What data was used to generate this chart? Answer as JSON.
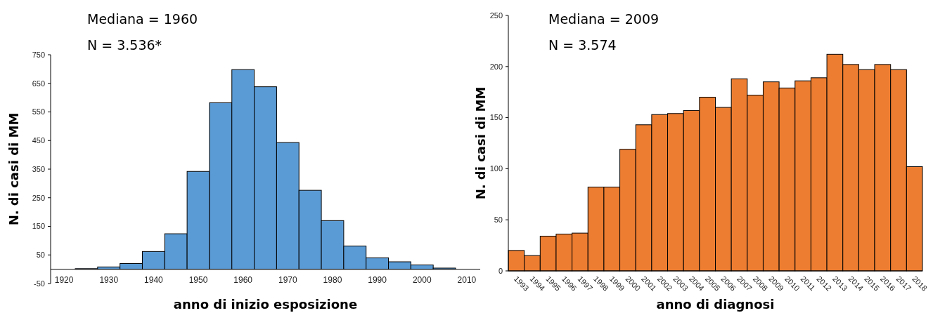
{
  "chart_data": [
    {
      "type": "histogram",
      "xlabel": "anno di inizio esposizione",
      "ylabel": "N. di casi di MM",
      "annotations": [
        "Mediana = 1960",
        "N = 3.536*"
      ],
      "bins": [
        1922.5,
        1927.5,
        1932.5,
        1937.5,
        1942.5,
        1947.5,
        1952.5,
        1957.5,
        1962.5,
        1967.5,
        1972.5,
        1977.5,
        1982.5,
        1987.5,
        1992.5,
        1997.5,
        2002.5,
        2007.5
      ],
      "values": [
        2,
        8,
        20,
        62,
        124,
        342,
        582,
        698,
        638,
        443,
        276,
        170,
        81,
        40,
        26,
        15,
        4
      ],
      "color": "#5b9bd5",
      "xlim": [
        1917,
        2013
      ],
      "xticks": [
        1920,
        1930,
        1940,
        1950,
        1960,
        1970,
        1980,
        1990,
        2000,
        2010
      ],
      "ylim": [
        -50,
        750
      ],
      "yticks": [
        -50,
        50,
        150,
        250,
        350,
        450,
        550,
        650,
        750
      ]
    },
    {
      "type": "bar",
      "xlabel": "anno di diagnosi",
      "ylabel": "N. di casi di MM",
      "annotations": [
        "Mediana = 2009",
        "N = 3.574"
      ],
      "categories": [
        "1993",
        "1994",
        "1995",
        "1996",
        "1997",
        "1998",
        "1999",
        "2000",
        "2001",
        "2002",
        "2003",
        "2004",
        "2005",
        "2006",
        "2007",
        "2008",
        "2009",
        "2010",
        "2011",
        "2012",
        "2013",
        "2014",
        "2015",
        "2016",
        "2017",
        "2018"
      ],
      "values": [
        20,
        15,
        34,
        36,
        37,
        82,
        82,
        119,
        143,
        153,
        154,
        157,
        170,
        160,
        188,
        172,
        185,
        179,
        186,
        189,
        212,
        202,
        197,
        202,
        197,
        102
      ],
      "color": "#ed7d31",
      "ylim": [
        0,
        250
      ],
      "yticks": [
        0,
        50,
        100,
        150,
        200,
        250
      ]
    }
  ]
}
